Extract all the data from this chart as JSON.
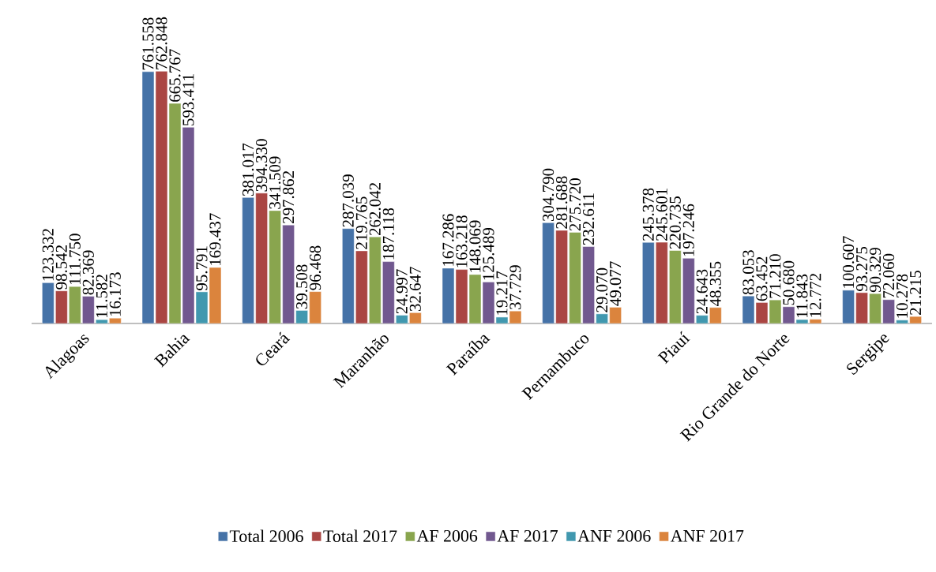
{
  "chart_data": {
    "type": "bar",
    "categories": [
      "Alagoas",
      "Bahia",
      "Ceará",
      "Maranhão",
      "Paraíba",
      "Pernambuco",
      "Piauí",
      "Rio Grande do Norte",
      "Sergipe"
    ],
    "series": [
      {
        "name": "Total 2006",
        "color": "#4572a7",
        "values": [
          123332,
          761558,
          381017,
          287039,
          167286,
          304790,
          245378,
          83053,
          100607
        ],
        "value_labels": [
          "123.332",
          "761.558",
          "381.017",
          "287.039",
          "167.286",
          "304.790",
          "245.378",
          "83.053",
          "100.607"
        ]
      },
      {
        "name": "Total 2017",
        "color": "#aa4643",
        "values": [
          98542,
          762848,
          394330,
          219765,
          163218,
          281688,
          245601,
          63452,
          93275
        ],
        "value_labels": [
          "98.542",
          "762.848",
          "394.330",
          "219.765",
          "163.218",
          "281.688",
          "245.601",
          "63.452",
          "93.275"
        ]
      },
      {
        "name": "AF 2006",
        "color": "#89a54e",
        "values": [
          111750,
          665767,
          341509,
          262042,
          148069,
          275720,
          220735,
          71210,
          90329
        ],
        "value_labels": [
          "111.750",
          "665.767",
          "341.509",
          "262.042",
          "148.069",
          "275.720",
          "220.735",
          "71.210",
          "90.329"
        ]
      },
      {
        "name": "AF 2017",
        "color": "#71588f",
        "values": [
          82369,
          593411,
          297862,
          187118,
          125489,
          232611,
          197246,
          50680,
          72060
        ],
        "value_labels": [
          "82.369",
          "593.411",
          "297.862",
          "187.118",
          "125.489",
          "232.611",
          "197.246",
          "50.680",
          "72.060"
        ]
      },
      {
        "name": "ANF 2006",
        "color": "#4198af",
        "values": [
          11582,
          95791,
          39508,
          24997,
          19217,
          29070,
          24643,
          11843,
          10278
        ],
        "value_labels": [
          "11.582",
          "95.791",
          "39.508",
          "24.997",
          "19.217",
          "29.070",
          "24.643",
          "11.843",
          "10.278"
        ]
      },
      {
        "name": "ANF 2017",
        "color": "#db843d",
        "values": [
          16173,
          169437,
          96468,
          32647,
          37729,
          49077,
          48355,
          12772,
          21215
        ],
        "value_labels": [
          "16.173",
          "169.437",
          "96.468",
          "32.647",
          "37.729",
          "49.077",
          "48.355",
          "12.772",
          "21.215"
        ]
      }
    ],
    "tick_labels": "x",
    "grid": false,
    "legend": "bottom"
  }
}
